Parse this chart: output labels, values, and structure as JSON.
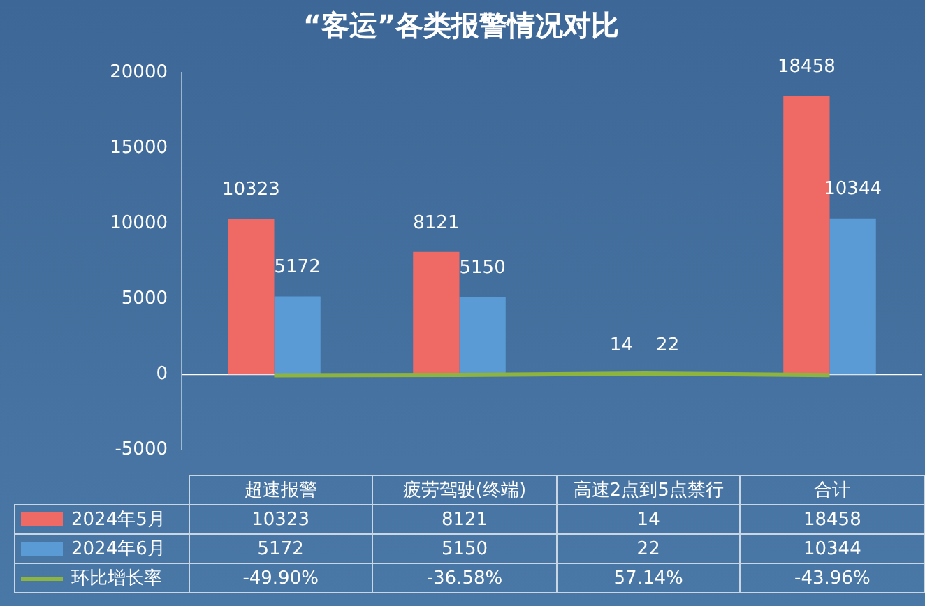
{
  "chart_data": {
    "type": "bar",
    "title": "“客运”各类报警情况对比",
    "categories": [
      "超速报警",
      "疲劳驾驶(终端)",
      "高速2点到5点禁行",
      "合计"
    ],
    "series": [
      {
        "name": "2024年5月",
        "color": "#f06a65",
        "values": [
          10323,
          8121,
          14,
          18458
        ]
      },
      {
        "name": "2024年6月",
        "color": "#5b9bd5",
        "values": [
          5172,
          5150,
          22,
          10344
        ]
      },
      {
        "name": "环比增长率",
        "type": "line",
        "color": "#8db43f",
        "values": [
          -49.9,
          -36.58,
          57.14,
          -43.96
        ],
        "value_labels": [
          "-49.90%",
          "-36.58%",
          "57.14%",
          "-43.96%"
        ]
      }
    ],
    "ylim": [
      -5000,
      20000
    ],
    "yticks": [
      -5000,
      0,
      5000,
      10000,
      15000,
      20000
    ],
    "annotations": [
      {
        "text": "10323",
        "x": "超速报警",
        "y": 10323
      },
      {
        "text": "8121",
        "x": "疲劳驾驶(终端)",
        "y": 8121
      },
      {
        "text": "14",
        "x": "高速2点到5点禁行",
        "y": 14
      },
      {
        "text": "18458",
        "x": "合计",
        "y": 18458
      },
      {
        "text": "5172",
        "x": "超速报警",
        "y": 5172
      },
      {
        "text": "5150",
        "x": "疲劳驾驶(终端)",
        "y": 5150
      },
      {
        "text": "22",
        "x": "高速2点到5点禁行",
        "y": 22
      },
      {
        "text": "10344",
        "x": "合计",
        "y": 10344
      }
    ],
    "data_labels": true,
    "legend": "bottom",
    "marker": "none"
  }
}
